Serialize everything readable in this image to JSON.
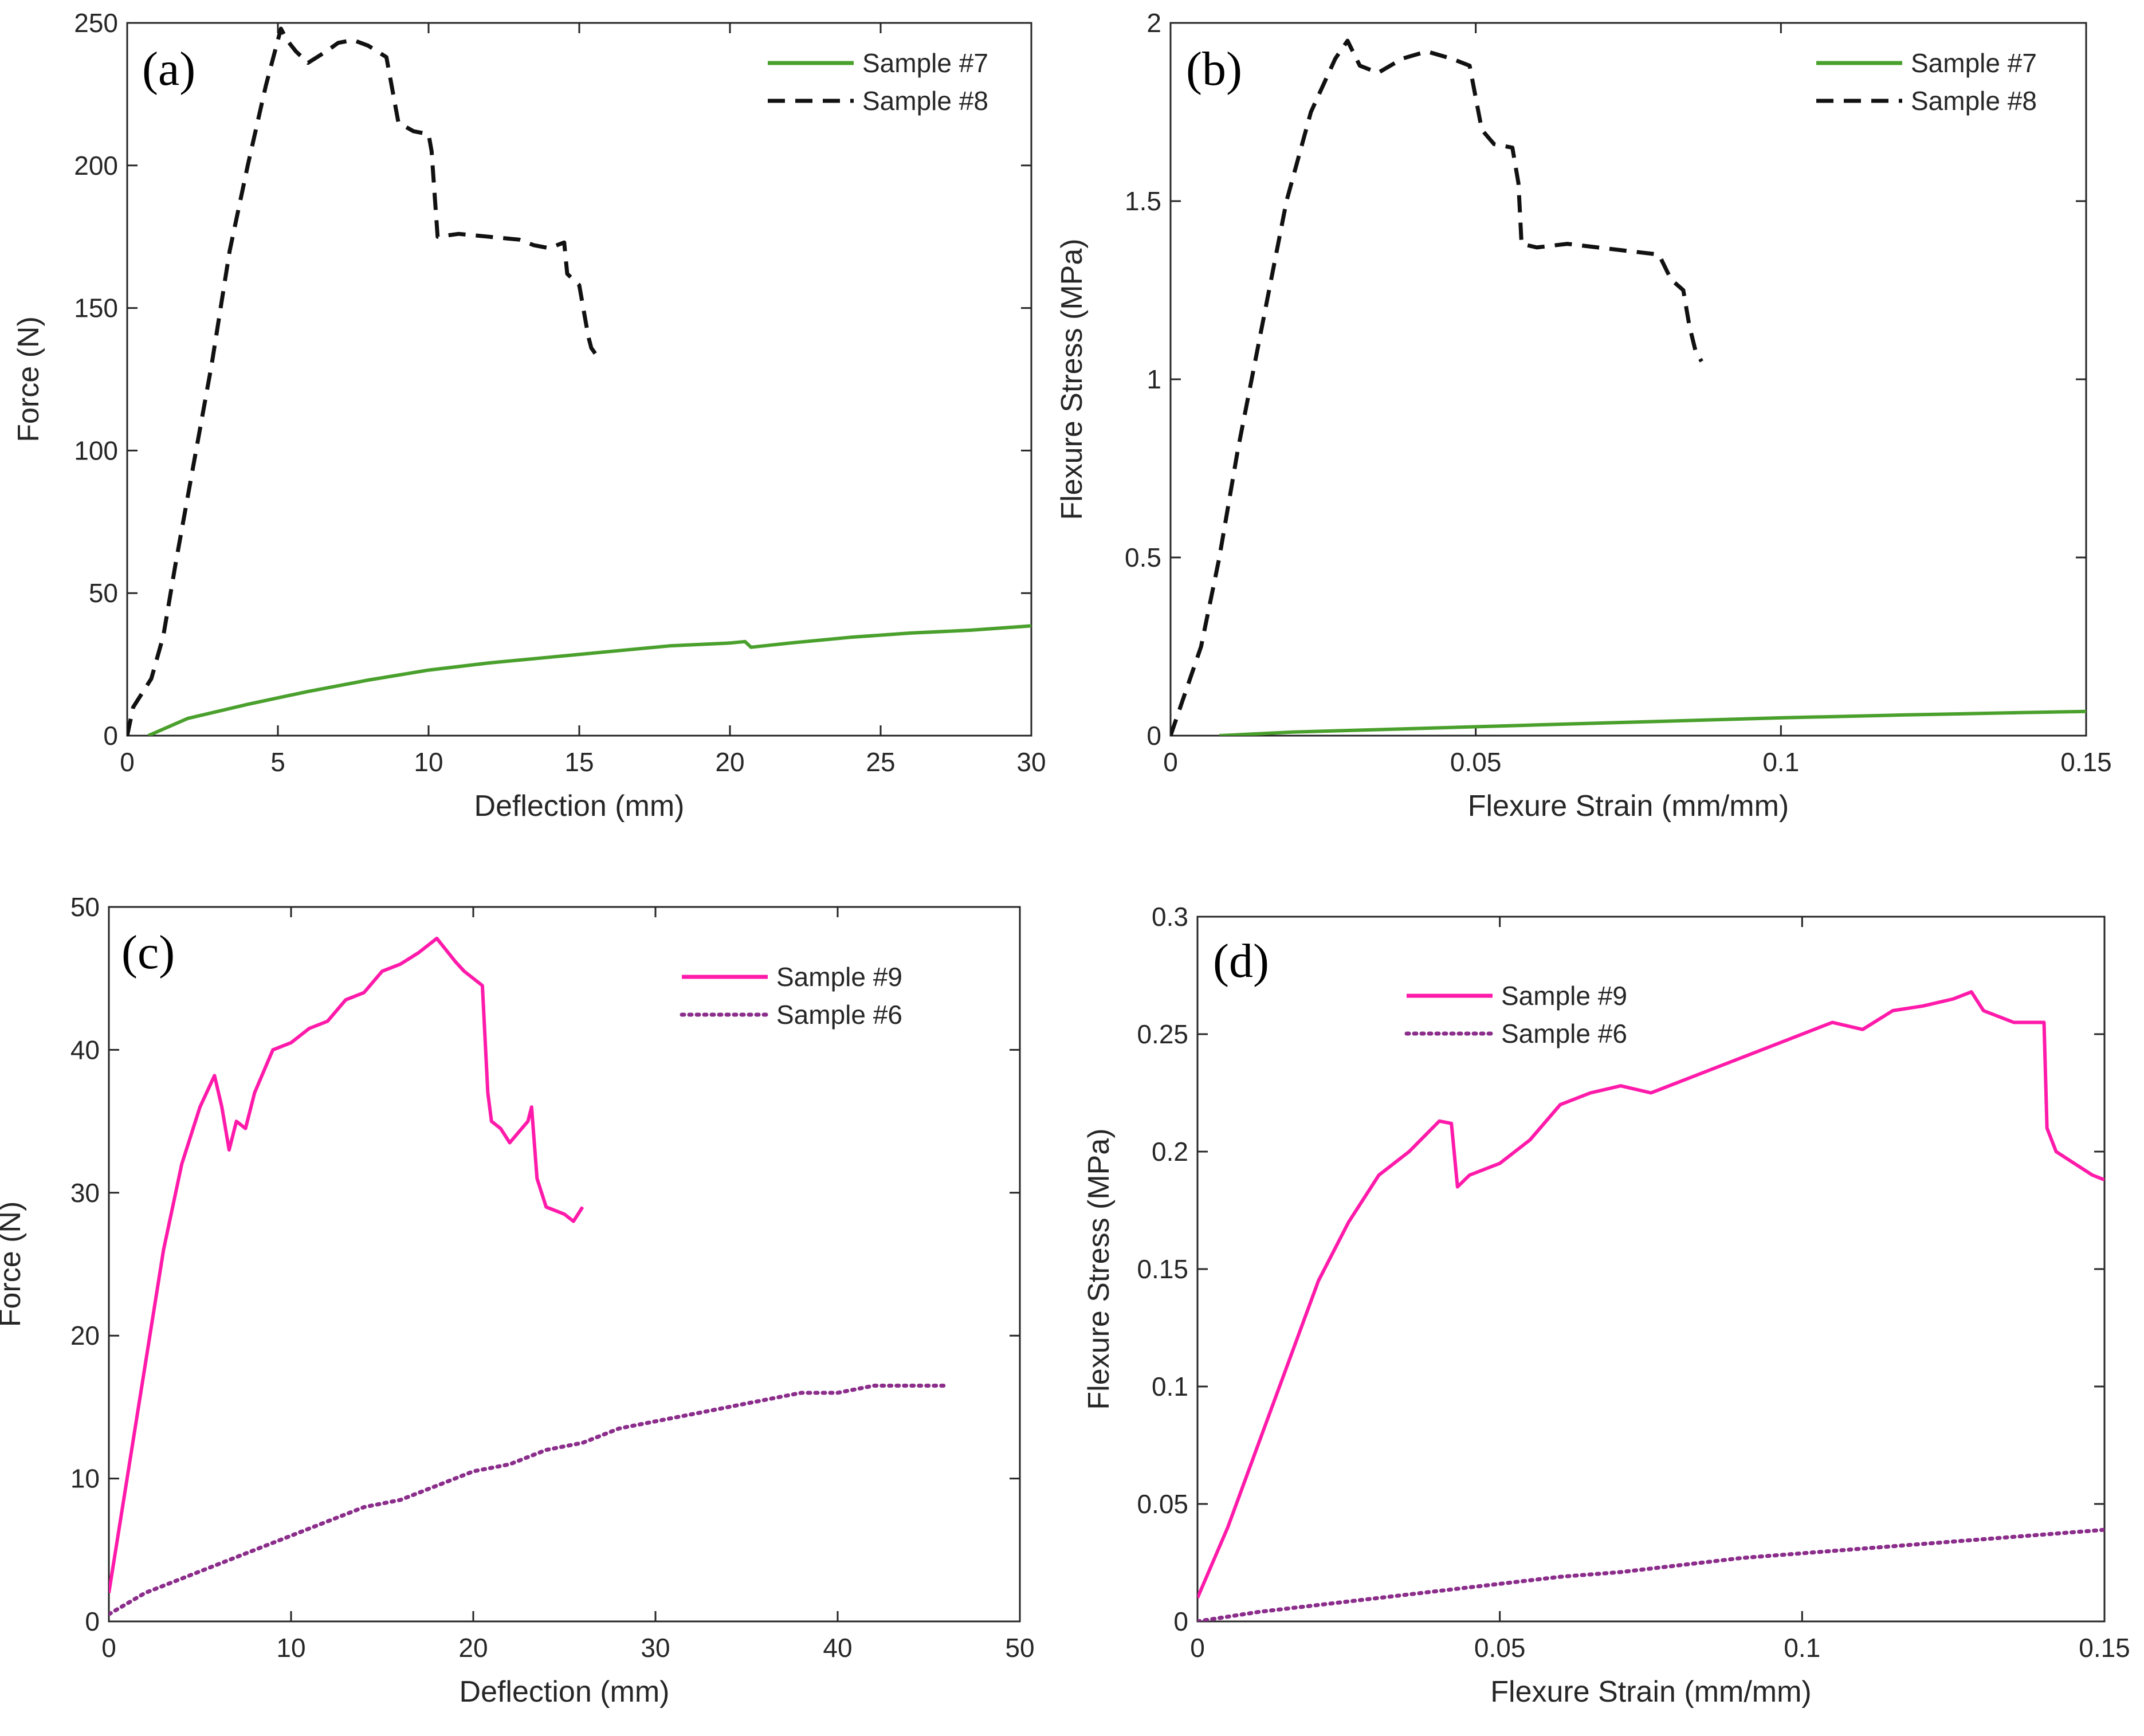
{
  "figure": {
    "panel_labels": [
      "(a)",
      "(b)",
      "(c)",
      "(d)"
    ]
  },
  "colors": {
    "green": "#4aa02c",
    "black": "#111111",
    "magenta": "#ff1aaa",
    "purple": "#8b2d8b",
    "axis": "#262626"
  },
  "chart_data": [
    {
      "type": "line",
      "panel": "(a)",
      "xlabel": "Deflection (mm)",
      "ylabel": "Force (N)",
      "xlim": [
        0,
        30
      ],
      "ylim": [
        0,
        250
      ],
      "xticks": [
        "0",
        "5",
        "10",
        "15",
        "20",
        "25",
        "30"
      ],
      "yticks": [
        "0",
        "50",
        "100",
        "150",
        "200",
        "250"
      ],
      "legend_position": "top-right",
      "series": [
        {
          "name": "Sample #7",
          "style": "solid",
          "color": "#4aa02c",
          "x": [
            0.7,
            2,
            4,
            6,
            8,
            10,
            12,
            14,
            16,
            18,
            20,
            20.5,
            20.7,
            22,
            24,
            26,
            28,
            30
          ],
          "y": [
            0,
            6,
            11,
            15.5,
            19.5,
            23,
            25.5,
            27.5,
            29.5,
            31.5,
            32.5,
            33,
            31,
            32.5,
            34.5,
            36,
            37,
            38.5
          ]
        },
        {
          "name": "Sample #8",
          "style": "dashed",
          "color": "#111111",
          "x": [
            0,
            0.2,
            0.8,
            1.2,
            1.6,
            2.2,
            2.8,
            3.4,
            4,
            4.6,
            5.1,
            5.3,
            5.6,
            6,
            6.6,
            7,
            7.5,
            8,
            8.6,
            9,
            9.5,
            10,
            10.1,
            10.2,
            10.3,
            11,
            12,
            13,
            13.5,
            14,
            14.5,
            14.6,
            15,
            15.3,
            15.4,
            15.6
          ],
          "y": [
            0,
            10,
            20,
            35,
            60,
            95,
            130,
            170,
            200,
            228,
            248,
            244,
            240,
            236,
            240,
            243,
            244,
            242,
            238,
            215,
            212,
            211,
            205,
            190,
            175,
            176,
            175,
            174,
            172,
            171,
            173,
            162,
            158,
            140,
            136,
            133
          ]
        }
      ]
    },
    {
      "type": "line",
      "panel": "(b)",
      "xlabel": "Flexure Strain (mm/mm)",
      "ylabel": "Flexure Stress (MPa)",
      "xlim": [
        0,
        0.15
      ],
      "ylim": [
        0,
        2
      ],
      "xticks": [
        "0",
        "0.05",
        "0.1",
        "0.15"
      ],
      "yticks": [
        "0",
        "0.5",
        "1",
        "1.5",
        "2"
      ],
      "legend_position": "top-right",
      "series": [
        {
          "name": "Sample #7",
          "style": "solid",
          "color": "#4aa02c",
          "x": [
            0.008,
            0.02,
            0.04,
            0.06,
            0.08,
            0.1,
            0.12,
            0.14,
            0.15
          ],
          "y": [
            0,
            0.01,
            0.02,
            0.03,
            0.04,
            0.05,
            0.058,
            0.065,
            0.068
          ]
        },
        {
          "name": "Sample #8",
          "style": "dashed",
          "color": "#111111",
          "x": [
            0,
            0.002,
            0.005,
            0.008,
            0.011,
            0.015,
            0.019,
            0.023,
            0.027,
            0.029,
            0.031,
            0.034,
            0.038,
            0.042,
            0.046,
            0.049,
            0.051,
            0.053,
            0.056,
            0.057,
            0.0575,
            0.06,
            0.065,
            0.07,
            0.075,
            0.08,
            0.082,
            0.084,
            0.085,
            0.086,
            0.087
          ],
          "y": [
            0,
            0.1,
            0.25,
            0.5,
            0.8,
            1.15,
            1.5,
            1.75,
            1.9,
            1.95,
            1.88,
            1.86,
            1.9,
            1.92,
            1.9,
            1.88,
            1.7,
            1.66,
            1.65,
            1.55,
            1.38,
            1.37,
            1.38,
            1.37,
            1.36,
            1.35,
            1.28,
            1.25,
            1.15,
            1.08,
            1.05
          ]
        }
      ]
    },
    {
      "type": "line",
      "panel": "(c)",
      "xlabel": "Deflection (mm)",
      "ylabel": "Force (N)",
      "xlim": [
        0,
        50
      ],
      "ylim": [
        0,
        50
      ],
      "xticks": [
        "0",
        "10",
        "20",
        "30",
        "40",
        "50"
      ],
      "yticks": [
        "0",
        "10",
        "20",
        "30",
        "40",
        "50"
      ],
      "legend_position": "top-right",
      "series": [
        {
          "name": "Sample #9",
          "style": "solid",
          "color": "#ff1aaa",
          "x": [
            0,
            1,
            2,
            3,
            4,
            5,
            5.8,
            6.2,
            6.6,
            7,
            7.5,
            8,
            9,
            10,
            11,
            12,
            13,
            14,
            15,
            16,
            17,
            18,
            18.5,
            19,
            19.5,
            20,
            20.5,
            20.8,
            21,
            21.5,
            22,
            23,
            23.2,
            23.5,
            24,
            25,
            25.5,
            26
          ],
          "y": [
            2,
            10,
            18,
            26,
            32,
            36,
            38.2,
            36,
            33,
            35,
            34.5,
            37,
            40,
            40.5,
            41.5,
            42,
            43.5,
            44,
            45.5,
            46,
            46.8,
            47.8,
            47,
            46.2,
            45.5,
            45,
            44.5,
            37,
            35,
            34.5,
            33.5,
            35,
            36,
            31,
            29,
            28.5,
            28,
            29
          ]
        },
        {
          "name": "Sample #6",
          "style": "dotted",
          "color": "#8b2d8b",
          "x": [
            0,
            2,
            4,
            6,
            8,
            10,
            12,
            14,
            16,
            18,
            20,
            22,
            24,
            26,
            28,
            30,
            32,
            34,
            36,
            38,
            40,
            42,
            44,
            46
          ],
          "y": [
            0.5,
            2,
            3,
            4,
            5,
            6,
            7,
            8,
            8.5,
            9.5,
            10.5,
            11,
            12,
            12.5,
            13.5,
            14,
            14.5,
            15,
            15.5,
            16,
            16,
            16.5,
            16.5,
            16.5
          ]
        }
      ]
    },
    {
      "type": "line",
      "panel": "(d)",
      "xlabel": "Flexure Strain (mm/mm)",
      "ylabel": "Flexure Stress (MPa)",
      "xlim": [
        0,
        0.15
      ],
      "ylim": [
        0,
        0.3
      ],
      "xticks": [
        "0",
        "0.05",
        "0.1",
        "0.15"
      ],
      "yticks": [
        "0",
        "0.05",
        "0.1",
        "0.15",
        "0.2",
        "0.25",
        "0.3"
      ],
      "legend_position": "upper-left",
      "series": [
        {
          "name": "Sample #9",
          "style": "solid",
          "color": "#ff1aaa",
          "x": [
            0,
            0.005,
            0.01,
            0.015,
            0.02,
            0.025,
            0.03,
            0.035,
            0.04,
            0.042,
            0.043,
            0.045,
            0.05,
            0.055,
            0.06,
            0.065,
            0.07,
            0.075,
            0.08,
            0.085,
            0.09,
            0.095,
            0.1,
            0.105,
            0.11,
            0.115,
            0.12,
            0.125,
            0.128,
            0.13,
            0.135,
            0.14,
            0.1405,
            0.142,
            0.145,
            0.148,
            0.15
          ],
          "y": [
            0.01,
            0.04,
            0.075,
            0.11,
            0.145,
            0.17,
            0.19,
            0.2,
            0.213,
            0.212,
            0.185,
            0.19,
            0.195,
            0.205,
            0.22,
            0.225,
            0.228,
            0.225,
            0.23,
            0.235,
            0.24,
            0.245,
            0.25,
            0.255,
            0.252,
            0.26,
            0.262,
            0.265,
            0.268,
            0.26,
            0.255,
            0.255,
            0.21,
            0.2,
            0.195,
            0.19,
            0.188
          ]
        },
        {
          "name": "Sample #6",
          "style": "dotted",
          "color": "#8b2d8b",
          "x": [
            0,
            0.01,
            0.02,
            0.03,
            0.04,
            0.05,
            0.06,
            0.07,
            0.08,
            0.09,
            0.1,
            0.11,
            0.12,
            0.13,
            0.14,
            0.15
          ],
          "y": [
            0,
            0.004,
            0.007,
            0.01,
            0.013,
            0.016,
            0.019,
            0.021,
            0.024,
            0.027,
            0.029,
            0.031,
            0.033,
            0.035,
            0.037,
            0.039
          ]
        }
      ]
    }
  ]
}
